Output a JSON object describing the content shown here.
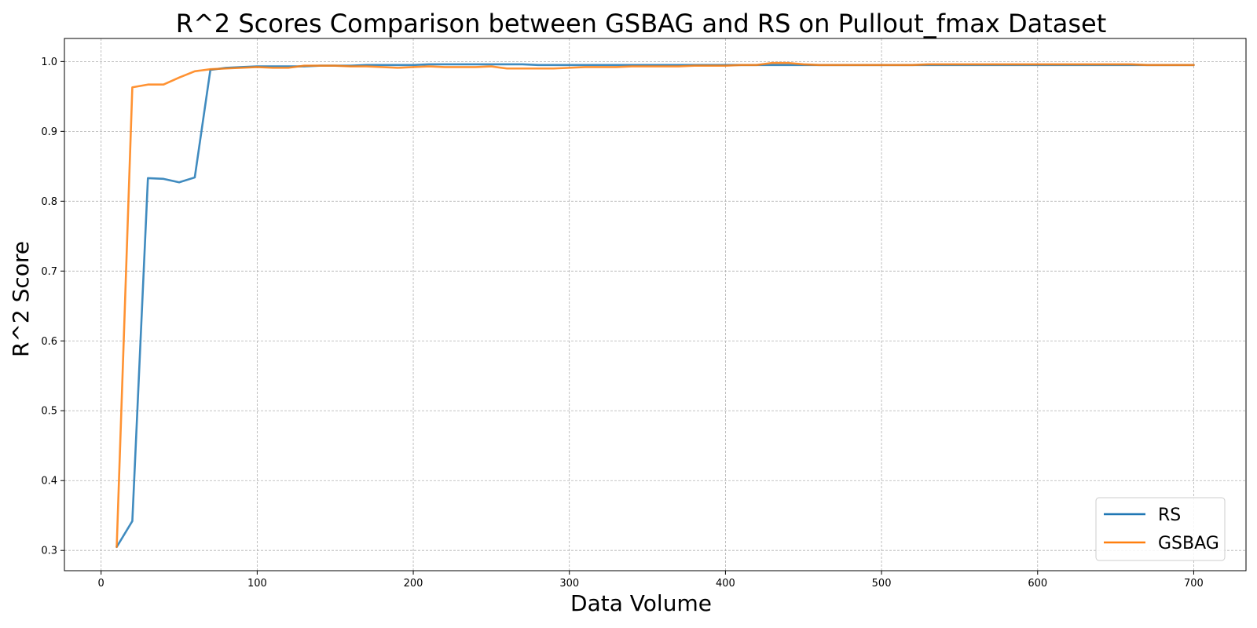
{
  "chart_data": {
    "type": "line",
    "title": "R^2 Scores Comparison between GSBAG and RS on Pullout_fmax Dataset",
    "xlabel": "Data Volume",
    "ylabel": "R^2 Score",
    "xlim": [
      -23.5,
      733.5
    ],
    "ylim": [
      0.271,
      1.033
    ],
    "xticks": [
      0,
      100,
      200,
      300,
      400,
      500,
      600,
      700
    ],
    "yticks": [
      0.3,
      0.4,
      0.5,
      0.6,
      0.7,
      0.8,
      0.9,
      1.0
    ],
    "grid": true,
    "legend_position": "lower-right",
    "x": [
      10,
      20,
      30,
      40,
      50,
      60,
      70,
      80,
      90,
      100,
      110,
      120,
      130,
      140,
      150,
      160,
      170,
      180,
      190,
      200,
      210,
      220,
      230,
      240,
      250,
      260,
      270,
      280,
      290,
      300,
      310,
      320,
      330,
      340,
      350,
      360,
      370,
      380,
      390,
      400,
      410,
      420,
      430,
      440,
      450,
      460,
      470,
      480,
      490,
      500,
      510,
      520,
      530,
      540,
      550,
      560,
      570,
      580,
      590,
      600,
      610,
      620,
      630,
      640,
      650,
      660,
      670,
      680,
      690,
      700
    ],
    "series": [
      {
        "name": "RS",
        "color": "#1f77b4",
        "values": [
          0.305,
          0.342,
          0.833,
          0.832,
          0.827,
          0.834,
          0.988,
          0.991,
          0.992,
          0.993,
          0.993,
          0.993,
          0.993,
          0.994,
          0.994,
          0.994,
          0.995,
          0.995,
          0.995,
          0.995,
          0.996,
          0.996,
          0.996,
          0.996,
          0.996,
          0.996,
          0.996,
          0.995,
          0.995,
          0.995,
          0.995,
          0.995,
          0.995,
          0.995,
          0.995,
          0.995,
          0.995,
          0.995,
          0.995,
          0.995,
          0.995,
          0.995,
          0.995,
          0.995,
          0.995,
          0.995,
          0.995,
          0.995,
          0.995,
          0.995,
          0.995,
          0.995,
          0.995,
          0.995,
          0.995,
          0.995,
          0.995,
          0.995,
          0.995,
          0.995,
          0.995,
          0.995,
          0.995,
          0.995,
          0.995,
          0.995,
          0.995,
          0.995,
          0.995,
          0.995
        ]
      },
      {
        "name": "GSBAG",
        "color": "#ff7f0e",
        "values": [
          0.305,
          0.963,
          0.967,
          0.967,
          0.977,
          0.986,
          0.989,
          0.99,
          0.991,
          0.992,
          0.991,
          0.991,
          0.994,
          0.994,
          0.994,
          0.993,
          0.993,
          0.992,
          0.991,
          0.992,
          0.993,
          0.992,
          0.992,
          0.992,
          0.993,
          0.99,
          0.99,
          0.99,
          0.99,
          0.991,
          0.992,
          0.992,
          0.992,
          0.993,
          0.993,
          0.993,
          0.993,
          0.994,
          0.994,
          0.994,
          0.995,
          0.995,
          0.998,
          0.998,
          0.996,
          0.995,
          0.995,
          0.995,
          0.995,
          0.995,
          0.995,
          0.995,
          0.996,
          0.996,
          0.996,
          0.996,
          0.996,
          0.996,
          0.996,
          0.996,
          0.996,
          0.996,
          0.996,
          0.996,
          0.996,
          0.996,
          0.995,
          0.995,
          0.995,
          0.995
        ]
      }
    ]
  }
}
